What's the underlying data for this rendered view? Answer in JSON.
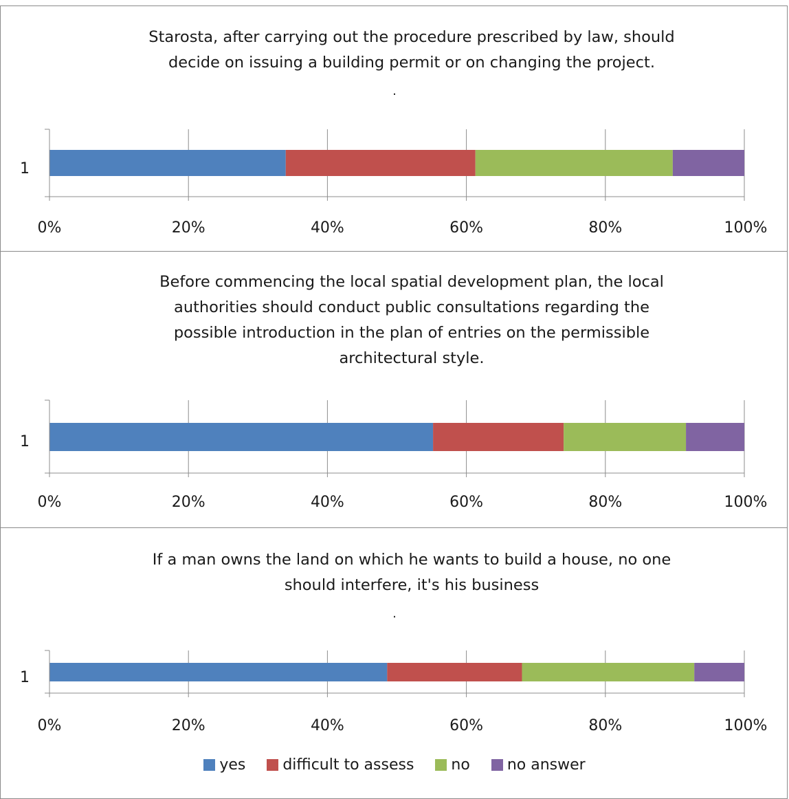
{
  "chart_data": [
    {
      "type": "bar",
      "orientation": "horizontal",
      "stacked": "percent",
      "title": "Starosta, after carrying out the procedure prescribed by law, should decide on issuing a building permit or on changing the project.",
      "title_lines": [
        "Starosta, after carrying out the procedure prescribed by law, should",
        "decide on issuing a building permit or on changing the project."
      ],
      "trailing_mark": ".",
      "categories": [
        "1"
      ],
      "series": [
        {
          "name": "yes",
          "values": [
            34
          ]
        },
        {
          "name": "difficult to assess",
          "values": [
            27.3
          ]
        },
        {
          "name": "no",
          "values": [
            28.4
          ]
        },
        {
          "name": "no answer",
          "values": [
            10.3
          ]
        }
      ],
      "xlim": [
        0,
        100
      ],
      "xticks": [
        "0%",
        "20%",
        "40%",
        "60%",
        "80%",
        "100%"
      ],
      "grid": "vertical"
    },
    {
      "type": "bar",
      "orientation": "horizontal",
      "stacked": "percent",
      "title": "Before commencing the local spatial development plan, the local authorities should conduct public consultations regarding the possible introduction in the plan of entries on the permissible architectural style.",
      "title_lines": [
        "Before commencing the local spatial development plan, the local",
        "authorities should conduct public consultations regarding the",
        "possible introduction in the plan of entries on the permissible",
        "architectural style."
      ],
      "trailing_mark": "",
      "categories": [
        "1"
      ],
      "series": [
        {
          "name": "yes",
          "values": [
            55.2
          ]
        },
        {
          "name": "difficult to assess",
          "values": [
            18.8
          ]
        },
        {
          "name": "no",
          "values": [
            17.6
          ]
        },
        {
          "name": "no answer",
          "values": [
            8.4
          ]
        }
      ],
      "xlim": [
        0,
        100
      ],
      "xticks": [
        "0%",
        "20%",
        "40%",
        "60%",
        "80%",
        "100%"
      ],
      "grid": "vertical"
    },
    {
      "type": "bar",
      "orientation": "horizontal",
      "stacked": "percent",
      "title": "If a man owns the land on which he wants to build a house, no one should interfere, it's his business",
      "title_lines": [
        "If a man owns the land on which he wants to build a house, no one",
        "should interfere, it's his business"
      ],
      "trailing_mark": ".",
      "categories": [
        "1"
      ],
      "series": [
        {
          "name": "yes",
          "values": [
            48.6
          ]
        },
        {
          "name": "difficult to assess",
          "values": [
            19.4
          ]
        },
        {
          "name": "no",
          "values": [
            24.8
          ]
        },
        {
          "name": "no answer",
          "values": [
            7.2
          ]
        }
      ],
      "xlim": [
        0,
        100
      ],
      "xticks": [
        "0%",
        "20%",
        "40%",
        "60%",
        "80%",
        "100%"
      ],
      "grid": "vertical"
    }
  ],
  "legend": {
    "placement": "bottom",
    "items": [
      {
        "label": "yes",
        "color": "#4f81bd"
      },
      {
        "label": "difficult to assess",
        "color": "#c0504d"
      },
      {
        "label": "no",
        "color": "#9bbb59"
      },
      {
        "label": "no answer",
        "color": "#8064a2"
      }
    ]
  }
}
